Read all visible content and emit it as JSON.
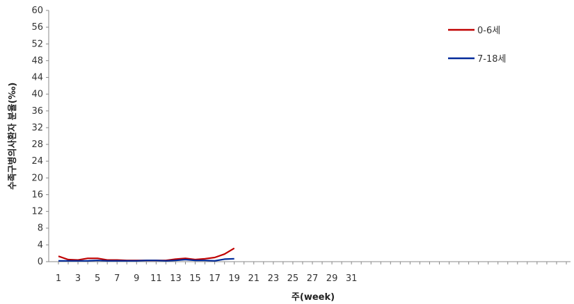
{
  "chart_data": {
    "type": "line",
    "xlabel": "주(week)",
    "ylabel": "수족구병의사환자 분율(‰)",
    "ylim": [
      0,
      60
    ],
    "yticks": [
      0,
      4,
      8,
      12,
      16,
      20,
      24,
      28,
      32,
      36,
      40,
      44,
      48,
      52,
      56,
      60
    ],
    "xlim": [
      1,
      53
    ],
    "xtick_labels": [
      "1",
      "3",
      "5",
      "7",
      "9",
      "11",
      "13",
      "15",
      "17",
      "19",
      "21",
      "23",
      "25",
      "27",
      "29",
      "31"
    ],
    "x": [
      1,
      2,
      3,
      4,
      5,
      6,
      7,
      8,
      9,
      10,
      11,
      12,
      13,
      14,
      15,
      16,
      17,
      18,
      19
    ],
    "series": [
      {
        "name": "0-6세",
        "color": "#c00000",
        "values": [
          1.3,
          0.5,
          0.4,
          0.8,
          0.8,
          0.4,
          0.4,
          0.3,
          0.3,
          0.3,
          0.3,
          0.3,
          0.6,
          0.8,
          0.5,
          0.7,
          1.0,
          1.8,
          3.2
        ]
      },
      {
        "name": "7-18세",
        "color": "#002a9a",
        "values": [
          0.2,
          0.2,
          0.2,
          0.2,
          0.3,
          0.2,
          0.2,
          0.2,
          0.2,
          0.3,
          0.3,
          0.2,
          0.3,
          0.5,
          0.3,
          0.3,
          0.2,
          0.6,
          0.7
        ]
      }
    ],
    "grid": false,
    "legend_position": "top-right"
  }
}
